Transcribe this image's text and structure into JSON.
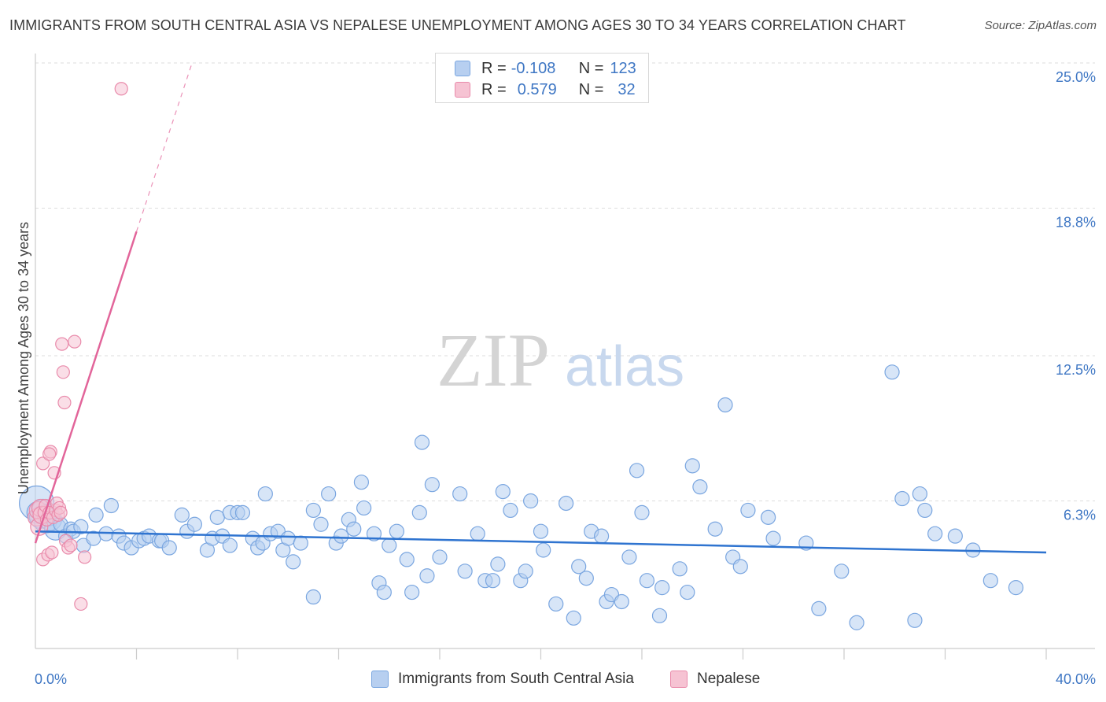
{
  "header": {
    "title": "IMMIGRANTS FROM SOUTH CENTRAL ASIA VS NEPALESE UNEMPLOYMENT AMONG AGES 30 TO 34 YEARS CORRELATION CHART",
    "source": "Source: ZipAtlas.com"
  },
  "colors": {
    "blue": "#7aa6e0",
    "blue_fill": "#b7cff0",
    "blue_line": "#2f74d0",
    "pink": "#e98bab",
    "pink_fill": "#f6c3d3",
    "pink_line": "#e2659a",
    "accent_text": "#3f77c4"
  },
  "legend": {
    "rows": [
      {
        "r_label": "R =",
        "r_value": "-0.108",
        "n_label": "N =",
        "n_value": "123"
      },
      {
        "r_label": "R =",
        "r_value": "0.579",
        "n_label": "N =",
        "n_value": "32"
      }
    ]
  },
  "watermark": {
    "zip": "ZIP",
    "atlas": "atlas"
  },
  "chart_data": {
    "type": "scatter",
    "title": "IMMIGRANTS FROM SOUTH CENTRAL ASIA VS NEPALESE UNEMPLOYMENT AMONG AGES 30 TO 34 YEARS CORRELATION CHART",
    "xlabel": "",
    "ylabel": "Unemployment Among Ages 30 to 34 years",
    "xlim": [
      0,
      40
    ],
    "ylim": [
      0,
      25.0
    ],
    "x_tick_labels": [
      "0.0%",
      "40.0%"
    ],
    "y_ticks": [
      6.3,
      12.5,
      18.8,
      25.0
    ],
    "y_tick_labels": [
      "6.3%",
      "12.5%",
      "18.8%",
      "25.0%"
    ],
    "grid": true,
    "legend_position": "bottom",
    "series": [
      {
        "name": "Immigrants from South Central Asia",
        "color": "#7aa6e0",
        "trend": {
          "x0": 0.0,
          "y0": 5.0,
          "x1": 40.0,
          "y1": 4.1
        },
        "points": [
          [
            0.05,
            6.2
          ],
          [
            0.1,
            5.8
          ],
          [
            0.2,
            5.6
          ],
          [
            0.3,
            5.9
          ],
          [
            0.4,
            5.4
          ],
          [
            0.5,
            5.7
          ],
          [
            0.6,
            5.5
          ],
          [
            0.8,
            5.1
          ],
          [
            1.0,
            5.3
          ],
          [
            1.2,
            4.8
          ],
          [
            1.4,
            5.1
          ],
          [
            1.5,
            5.0
          ],
          [
            1.8,
            5.2
          ],
          [
            1.9,
            4.4
          ],
          [
            2.3,
            4.7
          ],
          [
            2.4,
            5.7
          ],
          [
            2.8,
            4.9
          ],
          [
            3.0,
            6.1
          ],
          [
            3.3,
            4.8
          ],
          [
            3.5,
            4.5
          ],
          [
            3.8,
            4.3
          ],
          [
            4.1,
            4.6
          ],
          [
            4.3,
            4.7
          ],
          [
            4.5,
            4.8
          ],
          [
            4.9,
            4.6
          ],
          [
            5.0,
            4.6
          ],
          [
            5.3,
            4.3
          ],
          [
            5.8,
            5.7
          ],
          [
            6.0,
            5.0
          ],
          [
            6.3,
            5.3
          ],
          [
            6.8,
            4.2
          ],
          [
            7.0,
            4.7
          ],
          [
            7.2,
            5.6
          ],
          [
            7.4,
            4.8
          ],
          [
            7.7,
            5.8
          ],
          [
            7.7,
            4.4
          ],
          [
            8.0,
            5.8
          ],
          [
            8.2,
            5.8
          ],
          [
            8.6,
            4.7
          ],
          [
            8.8,
            4.3
          ],
          [
            9.0,
            4.5
          ],
          [
            9.1,
            6.6
          ],
          [
            9.3,
            4.9
          ],
          [
            9.6,
            5.0
          ],
          [
            9.8,
            4.2
          ],
          [
            10.0,
            4.7
          ],
          [
            10.2,
            3.7
          ],
          [
            10.5,
            4.5
          ],
          [
            11.0,
            2.2
          ],
          [
            11.0,
            5.9
          ],
          [
            11.3,
            5.3
          ],
          [
            11.6,
            6.6
          ],
          [
            11.9,
            4.5
          ],
          [
            12.1,
            4.8
          ],
          [
            12.4,
            5.5
          ],
          [
            12.6,
            5.1
          ],
          [
            12.9,
            7.1
          ],
          [
            13.0,
            6.0
          ],
          [
            13.4,
            4.9
          ],
          [
            13.6,
            2.8
          ],
          [
            13.8,
            2.4
          ],
          [
            14.0,
            4.4
          ],
          [
            14.3,
            5.0
          ],
          [
            14.7,
            3.8
          ],
          [
            14.9,
            2.4
          ],
          [
            15.2,
            5.8
          ],
          [
            15.5,
            3.1
          ],
          [
            15.3,
            8.8
          ],
          [
            15.7,
            7.0
          ],
          [
            16.0,
            3.9
          ],
          [
            16.8,
            6.6
          ],
          [
            17.0,
            3.3
          ],
          [
            17.5,
            4.9
          ],
          [
            17.8,
            2.9
          ],
          [
            18.1,
            2.9
          ],
          [
            18.3,
            3.6
          ],
          [
            18.5,
            6.7
          ],
          [
            18.8,
            5.9
          ],
          [
            19.2,
            2.9
          ],
          [
            19.4,
            3.3
          ],
          [
            19.6,
            6.3
          ],
          [
            20.0,
            5.0
          ],
          [
            20.1,
            4.2
          ],
          [
            20.6,
            1.9
          ],
          [
            21.0,
            6.2
          ],
          [
            21.3,
            1.3
          ],
          [
            21.5,
            3.5
          ],
          [
            21.8,
            3.0
          ],
          [
            22.0,
            5.0
          ],
          [
            22.4,
            4.8
          ],
          [
            22.6,
            2.0
          ],
          [
            22.8,
            2.3
          ],
          [
            23.2,
            2.0
          ],
          [
            23.5,
            3.9
          ],
          [
            23.8,
            7.6
          ],
          [
            24.0,
            5.8
          ],
          [
            24.2,
            2.9
          ],
          [
            24.7,
            1.4
          ],
          [
            24.8,
            2.6
          ],
          [
            25.5,
            3.4
          ],
          [
            25.8,
            2.4
          ],
          [
            26.0,
            7.8
          ],
          [
            26.3,
            6.9
          ],
          [
            26.9,
            5.1
          ],
          [
            27.3,
            10.4
          ],
          [
            27.6,
            3.9
          ],
          [
            27.9,
            3.5
          ],
          [
            28.2,
            5.9
          ],
          [
            29.0,
            5.6
          ],
          [
            29.2,
            4.7
          ],
          [
            30.5,
            4.5
          ],
          [
            31.0,
            1.7
          ],
          [
            31.9,
            3.3
          ],
          [
            32.5,
            1.1
          ],
          [
            33.9,
            11.8
          ],
          [
            34.3,
            6.4
          ],
          [
            34.8,
            1.2
          ],
          [
            35.0,
            6.6
          ],
          [
            35.2,
            5.9
          ],
          [
            35.6,
            4.9
          ],
          [
            36.4,
            4.8
          ],
          [
            37.1,
            4.2
          ],
          [
            37.8,
            2.9
          ],
          [
            38.8,
            2.6
          ]
        ]
      },
      {
        "name": "Nepalese",
        "color": "#e98bab",
        "trend": {
          "x0": 0.0,
          "y0": 4.5,
          "x1": 4.0,
          "y1": 17.8,
          "dashed_to": {
            "x": 6.2,
            "y": 25.0
          }
        },
        "points": [
          [
            0.05,
            5.6
          ],
          [
            0.1,
            5.9
          ],
          [
            0.15,
            5.2
          ],
          [
            0.2,
            6.0
          ],
          [
            0.25,
            5.7
          ],
          [
            0.3,
            3.8
          ],
          [
            0.35,
            5.8
          ],
          [
            0.4,
            6.1
          ],
          [
            0.45,
            5.5
          ],
          [
            0.5,
            4.0
          ],
          [
            0.55,
            5.8
          ],
          [
            0.6,
            8.4
          ],
          [
            0.65,
            4.1
          ],
          [
            0.7,
            5.6
          ],
          [
            0.75,
            7.5
          ],
          [
            0.8,
            5.9
          ],
          [
            0.85,
            6.2
          ],
          [
            0.9,
            5.7
          ],
          [
            0.95,
            6.0
          ],
          [
            1.0,
            5.8
          ],
          [
            1.05,
            13.0
          ],
          [
            1.1,
            11.8
          ],
          [
            1.15,
            10.5
          ],
          [
            1.2,
            4.6
          ],
          [
            1.3,
            4.3
          ],
          [
            1.4,
            4.4
          ],
          [
            1.55,
            13.1
          ],
          [
            1.8,
            1.9
          ],
          [
            1.95,
            3.9
          ],
          [
            0.3,
            7.9
          ],
          [
            0.55,
            8.3
          ],
          [
            3.4,
            23.9
          ]
        ]
      }
    ]
  },
  "bottom_legend": {
    "items": [
      {
        "label": "Immigrants from South Central Asia"
      },
      {
        "label": "Nepalese"
      }
    ]
  }
}
